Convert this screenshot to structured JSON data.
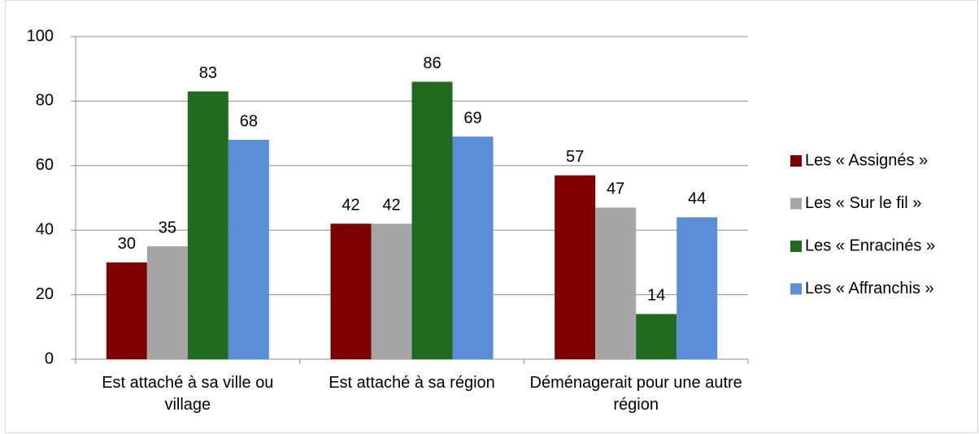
{
  "chart_data": {
    "type": "bar",
    "categories": [
      "Est attaché à sa ville ou village",
      "Est attaché à sa région",
      "Déménagerait pour une autre région"
    ],
    "series": [
      {
        "name": "Les « Assignés »",
        "color": "#7f0000",
        "values": [
          30,
          42,
          57
        ]
      },
      {
        "name": "Les « Sur le fil »",
        "color": "#a6a6a6",
        "values": [
          35,
          42,
          47
        ]
      },
      {
        "name": "Les « Enracinés »",
        "color": "#1e6b1e",
        "values": [
          83,
          86,
          14
        ]
      },
      {
        "name": "Les « Affranchis »",
        "color": "#5a8fd8",
        "values": [
          68,
          69,
          44
        ]
      }
    ],
    "ylim": [
      0,
      100
    ],
    "yticks": [
      0,
      20,
      40,
      60,
      80,
      100
    ],
    "grid": true,
    "legend": "right"
  }
}
